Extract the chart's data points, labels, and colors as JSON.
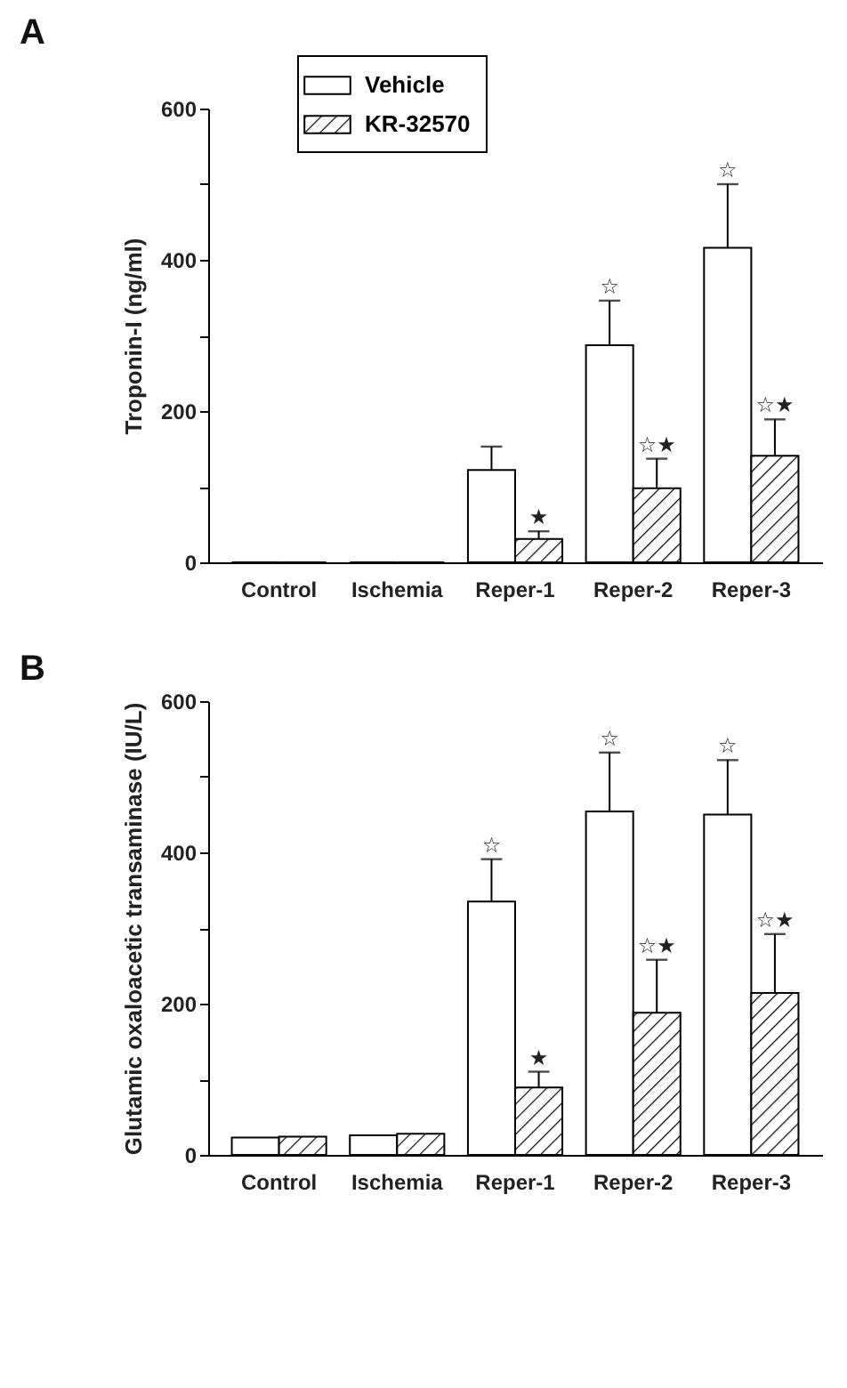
{
  "chart_data": [
    {
      "type": "bar",
      "title": "A",
      "ylabel": "Troponin-I (ng/ml)",
      "categories": [
        "Control",
        "Ischemia",
        "Reper-1",
        "Reper-2",
        "Reper-3"
      ],
      "series": [
        {
          "name": "Vehicle",
          "color": "#ffffff",
          "values": [
            0,
            0,
            122,
            287,
            416
          ],
          "errors": [
            null,
            null,
            [
              122,
              153
            ],
            [
              287,
              346
            ],
            [
              416,
              500
            ]
          ],
          "value_labels": [
            null,
            null,
            null,
            "☆",
            "☆"
          ]
        },
        {
          "name": "KR-32570",
          "color": "#000000",
          "values": [
            0,
            0,
            31,
            98,
            141
          ],
          "errors": [
            null,
            null,
            [
              31,
              41
            ],
            [
              98,
              137
            ],
            [
              141,
              189
            ]
          ],
          "value_labels": [
            null,
            null,
            "★",
            "☆★",
            "☆★"
          ]
        }
      ],
      "ylim": [
        0,
        600
      ],
      "yticks": [
        0,
        {
          "value": 100,
          "label": null
        },
        200,
        {
          "value": 300,
          "label": null
        },
        400,
        {
          "value": 500,
          "label": null
        },
        600
      ],
      "legend": "top left",
      "grid": false
    },
    {
      "type": "bar",
      "title": "B",
      "ylabel": "Glutamic oxaloacetic transaminase (IU/L)",
      "categories": [
        "Control",
        "Ischemia",
        "Reper-1",
        "Reper-2",
        "Reper-3"
      ],
      "series": [
        {
          "color": "#ffffff",
          "values": [
            23,
            26,
            335,
            454,
            450
          ],
          "errors": [
            null,
            null,
            [
              335,
              391
            ],
            [
              454,
              532
            ],
            [
              450,
              522
            ]
          ],
          "value_labels": [
            null,
            null,
            "☆",
            "☆",
            "☆"
          ]
        },
        {
          "color": "#000000",
          "values": [
            24,
            28,
            89,
            188,
            214
          ],
          "errors": [
            null,
            null,
            [
              89,
              110
            ],
            [
              188,
              258
            ],
            [
              214,
              292
            ]
          ],
          "value_labels": [
            null,
            null,
            "★",
            "☆★",
            "☆★"
          ]
        }
      ],
      "ylim": [
        0,
        600
      ],
      "yticks": [
        0,
        {
          "value": 100,
          "label": null
        },
        200,
        {
          "value": 300,
          "label": null
        },
        400,
        {
          "value": 500,
          "label": null
        },
        600
      ],
      "legend": false,
      "grid": false
    }
  ]
}
